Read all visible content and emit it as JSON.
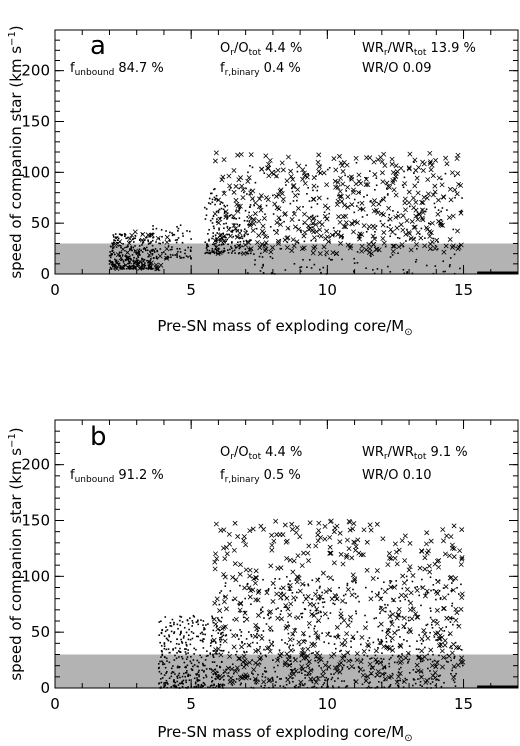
{
  "chart_data": [
    {
      "type": "scatter",
      "panel_label": "a",
      "xlabel": "Pre-SN mass of exploding core/M",
      "xlabel_symbol": "⊙",
      "ylabel": "speed of companion star (km s",
      "ylabel_tail": ")",
      "ylabel_exponent": "−1",
      "xlim": [
        0,
        17
      ],
      "ylim": [
        0,
        240
      ],
      "x_ticks": [
        0,
        5,
        10,
        15
      ],
      "y_ticks": [
        0,
        50,
        100,
        150,
        200
      ],
      "shaded_band": {
        "y_from": 0,
        "y_to": 30,
        "color": "#b3b3b3"
      },
      "annotations": {
        "o_ratio": {
          "main": "O",
          "sub1": "r",
          "mid": "/O",
          "sub2": "tot",
          "value": "4.4 %"
        },
        "wr_ratio": {
          "main": "WR",
          "sub1": "r",
          "mid": "/WR",
          "sub2": "tot",
          "value": "13.9 %"
        },
        "f_unbound": {
          "main": "f",
          "sub": "unbound",
          "value": "84.7 %"
        },
        "f_binary": {
          "main": "f",
          "sub": "r,binary",
          "value": "0.4 %"
        },
        "wr_o": {
          "text": "WR/O 0.09"
        }
      },
      "series": [
        {
          "marker": "dot",
          "clusters": [
            {
              "x": [
                2.0,
                3.6
              ],
              "y": [
                5,
                40
              ],
              "n": 300,
              "bias": 0.6
            },
            {
              "x": [
                3.5,
                5.0
              ],
              "y": [
                15,
                48
              ],
              "n": 90,
              "bias": 0.5
            },
            {
              "x": [
                5.5,
                7.2
              ],
              "y": [
                20,
                85
              ],
              "n": 210,
              "bias": 0.4
            },
            {
              "x": [
                7.0,
                15.0
              ],
              "y": [
                0,
                110
              ],
              "n": 250,
              "bias": 0.2
            }
          ]
        },
        {
          "marker": "cross",
          "clusters": [
            {
              "x": [
                2.2,
                4.2
              ],
              "y": [
                5,
                45
              ],
              "n": 40,
              "bias": 0.5
            },
            {
              "x": [
                5.8,
                15.0
              ],
              "y": [
                20,
                120
              ],
              "n": 450,
              "bias": 0.1
            }
          ]
        }
      ]
    },
    {
      "type": "scatter",
      "panel_label": "b",
      "xlabel": "Pre-SN mass of exploding core/M",
      "xlabel_symbol": "⊙",
      "ylabel": "speed of companion star (km s",
      "ylabel_tail": ")",
      "ylabel_exponent": "−1",
      "xlim": [
        0,
        17
      ],
      "ylim": [
        0,
        240
      ],
      "x_ticks": [
        0,
        5,
        10,
        15
      ],
      "y_ticks": [
        0,
        50,
        100,
        150,
        200
      ],
      "shaded_band": {
        "y_from": 0,
        "y_to": 30,
        "color": "#b3b3b3"
      },
      "annotations": {
        "o_ratio": {
          "main": "O",
          "sub1": "r",
          "mid": "/O",
          "sub2": "tot",
          "value": "4.4 %"
        },
        "wr_ratio": {
          "main": "WR",
          "sub1": "r",
          "mid": "/WR",
          "sub2": "tot",
          "value": "9.1 %"
        },
        "f_unbound": {
          "main": "f",
          "sub": "unbound",
          "value": "91.2 %"
        },
        "f_binary": {
          "main": "f",
          "sub": "r,binary",
          "value": "0.5 %"
        },
        "wr_o": {
          "text": "WR/O 0.10"
        }
      },
      "series": [
        {
          "marker": "dot",
          "clusters": [
            {
              "x": [
                3.8,
                6.2
              ],
              "y": [
                0,
                65
              ],
              "n": 380,
              "bias": 0.5
            },
            {
              "x": [
                6.0,
                15.0
              ],
              "y": [
                0,
                100
              ],
              "n": 650,
              "bias": 0.3
            }
          ]
        },
        {
          "marker": "cross",
          "clusters": [
            {
              "x": [
                5.8,
                15.0
              ],
              "y": [
                5,
                150
              ],
              "n": 550,
              "bias": 0.15
            }
          ]
        }
      ]
    }
  ]
}
